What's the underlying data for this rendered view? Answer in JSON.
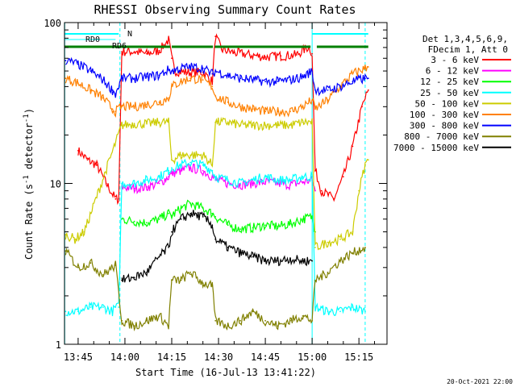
{
  "chart_data": {
    "type": "line",
    "title": "RHESSI Observing Summary Count Rates",
    "xlabel": "Start Time (16-Jul-13 13:41:22)",
    "ylabel": "Count Rate (s",
    "ylabel_sup": "-1",
    "ylabel_tail": " detector",
    "ylabel_sup2": "-1",
    "ylabel_close": ")",
    "yscale": "log",
    "ylim": [
      1,
      100
    ],
    "xlim_minutes": [
      -4.37,
      99
    ],
    "x_ticks": [
      {
        "label": "13:45",
        "min": 0
      },
      {
        "label": "14:00",
        "min": 15
      },
      {
        "label": "14:15",
        "min": 30
      },
      {
        "label": "14:30",
        "min": 45
      },
      {
        "label": "14:45",
        "min": 60
      },
      {
        "label": "15:00",
        "min": 75
      },
      {
        "label": "15:15",
        "min": 90
      }
    ],
    "y_ticks": [
      {
        "label": "1",
        "value": 1
      },
      {
        "label": "10",
        "value": 10
      },
      {
        "label": "100",
        "value": 100
      }
    ],
    "legend_header": [
      "Det 1,3,4,5,6,9,",
      "FDecim 1, Att 0"
    ],
    "legend_placement": "right",
    "series": [
      {
        "name": "3 - 6 keV",
        "color": "#ff0000",
        "points": [
          [
            0,
            16
          ],
          [
            3,
            14
          ],
          [
            6,
            13
          ],
          [
            9,
            10
          ],
          [
            12,
            8
          ],
          [
            13,
            8
          ],
          [
            14,
            66
          ],
          [
            18,
            66
          ],
          [
            22,
            64
          ],
          [
            26,
            67
          ],
          [
            29,
            78
          ],
          [
            30,
            60
          ],
          [
            31,
            50
          ],
          [
            35,
            49
          ],
          [
            40,
            49
          ],
          [
            43,
            43
          ],
          [
            44,
            82
          ],
          [
            46,
            68
          ],
          [
            50,
            65
          ],
          [
            55,
            63
          ],
          [
            60,
            61
          ],
          [
            65,
            62
          ],
          [
            70,
            63
          ],
          [
            74,
            71
          ],
          [
            75,
            64
          ],
          [
            76,
            12
          ],
          [
            78,
            9
          ],
          [
            82,
            8
          ],
          [
            85,
            11
          ],
          [
            88,
            17
          ],
          [
            91,
            30
          ],
          [
            93,
            38
          ]
        ]
      },
      {
        "name": "6 - 12 keV",
        "color": "#ff00ff",
        "points": [
          [
            14,
            9.5
          ],
          [
            18,
            9.3
          ],
          [
            22,
            9.5
          ],
          [
            26,
            10
          ],
          [
            29,
            11
          ],
          [
            30,
            11.5
          ],
          [
            33,
            12
          ],
          [
            36,
            12.5
          ],
          [
            40,
            12
          ],
          [
            43,
            11
          ],
          [
            44,
            10.5
          ],
          [
            48,
            10
          ],
          [
            52,
            9.8
          ],
          [
            56,
            10
          ],
          [
            60,
            10.2
          ],
          [
            64,
            10
          ],
          [
            68,
            9.8
          ],
          [
            72,
            10.2
          ],
          [
            75,
            10.5
          ],
          [
            76,
            9
          ]
        ]
      },
      {
        "name": "12 - 25 keV",
        "color": "#00ff00",
        "points": [
          [
            14,
            6
          ],
          [
            18,
            5.8
          ],
          [
            22,
            5.7
          ],
          [
            26,
            6
          ],
          [
            29,
            6.5
          ],
          [
            30,
            6.3
          ],
          [
            33,
            7
          ],
          [
            36,
            7.5
          ],
          [
            40,
            7
          ],
          [
            43,
            6.5
          ],
          [
            44,
            6.2
          ],
          [
            48,
            5.5
          ],
          [
            52,
            5.2
          ],
          [
            56,
            5.3
          ],
          [
            60,
            5.5
          ],
          [
            64,
            5.4
          ],
          [
            68,
            5.6
          ],
          [
            72,
            6
          ],
          [
            75,
            6.2
          ],
          [
            76,
            5
          ]
        ]
      },
      {
        "name": "25 - 50 keV",
        "color": "#00ffff",
        "points": [
          [
            -4,
            1.6
          ],
          [
            0,
            1.6
          ],
          [
            4,
            1.7
          ],
          [
            8,
            1.7
          ],
          [
            11,
            1.6
          ],
          [
            12,
            1.7
          ],
          [
            13,
            1.7
          ],
          [
            14,
            10
          ],
          [
            18,
            10
          ],
          [
            22,
            10.5
          ],
          [
            26,
            11
          ],
          [
            29,
            12
          ],
          [
            30,
            12.5
          ],
          [
            33,
            13
          ],
          [
            36,
            13.5
          ],
          [
            40,
            13
          ],
          [
            43,
            12
          ],
          [
            44,
            11
          ],
          [
            48,
            10.5
          ],
          [
            52,
            10
          ],
          [
            56,
            10.5
          ],
          [
            60,
            11
          ],
          [
            64,
            10.5
          ],
          [
            68,
            10.5
          ],
          [
            72,
            11
          ],
          [
            75,
            11
          ],
          [
            76,
            1.7
          ],
          [
            80,
            1.6
          ],
          [
            84,
            1.6
          ],
          [
            88,
            1.7
          ],
          [
            92,
            1.6
          ]
        ]
      },
      {
        "name": "50 - 100 keV",
        "color": "#cccc00",
        "points": [
          [
            -4,
            4.8
          ],
          [
            -1,
            4.5
          ],
          [
            2,
            5
          ],
          [
            14,
            23
          ],
          [
            18,
            23.5
          ],
          [
            22,
            23.5
          ],
          [
            26,
            24
          ],
          [
            29,
            24
          ],
          [
            30,
            14
          ],
          [
            33,
            15
          ],
          [
            36,
            15
          ],
          [
            40,
            15
          ],
          [
            43,
            13
          ],
          [
            44,
            24
          ],
          [
            48,
            24
          ],
          [
            52,
            23
          ],
          [
            56,
            23
          ],
          [
            60,
            23
          ],
          [
            64,
            23
          ],
          [
            68,
            23
          ],
          [
            72,
            24
          ],
          [
            75,
            24
          ],
          [
            76,
            4
          ],
          [
            80,
            4.3
          ],
          [
            84,
            4.5
          ],
          [
            88,
            5
          ],
          [
            90,
            9
          ],
          [
            92,
            13
          ],
          [
            93,
            14
          ]
        ]
      },
      {
        "name": "100 - 300 keV",
        "color": "#ff8000",
        "points": [
          [
            -4,
            45
          ],
          [
            0,
            42
          ],
          [
            4,
            38
          ],
          [
            8,
            34
          ],
          [
            11,
            29
          ],
          [
            12,
            28
          ],
          [
            14,
            30
          ],
          [
            18,
            30
          ],
          [
            22,
            31
          ],
          [
            26,
            32
          ],
          [
            29,
            34
          ],
          [
            30,
            40
          ],
          [
            33,
            43
          ],
          [
            36,
            45
          ],
          [
            40,
            44
          ],
          [
            43,
            40
          ],
          [
            44,
            35
          ],
          [
            48,
            32
          ],
          [
            52,
            30
          ],
          [
            56,
            29
          ],
          [
            60,
            28
          ],
          [
            64,
            28
          ],
          [
            68,
            28
          ],
          [
            72,
            30
          ],
          [
            75,
            33
          ],
          [
            76,
            29
          ],
          [
            80,
            33
          ],
          [
            84,
            40
          ],
          [
            88,
            48
          ],
          [
            92,
            52
          ],
          [
            93,
            53
          ]
        ]
      },
      {
        "name": "300 - 800 keV",
        "color": "#0000ff",
        "points": [
          [
            -4,
            58
          ],
          [
            0,
            55
          ],
          [
            4,
            50
          ],
          [
            8,
            44
          ],
          [
            11,
            38
          ],
          [
            12,
            36
          ],
          [
            14,
            45
          ],
          [
            18,
            45
          ],
          [
            22,
            46
          ],
          [
            26,
            47
          ],
          [
            29,
            51
          ],
          [
            30,
            50
          ],
          [
            33,
            52
          ],
          [
            36,
            53
          ],
          [
            40,
            52
          ],
          [
            43,
            48
          ],
          [
            44,
            50
          ],
          [
            48,
            47
          ],
          [
            52,
            45
          ],
          [
            56,
            44
          ],
          [
            60,
            43
          ],
          [
            64,
            43
          ],
          [
            68,
            44
          ],
          [
            72,
            46
          ],
          [
            75,
            50
          ],
          [
            76,
            38
          ],
          [
            80,
            38
          ],
          [
            84,
            40
          ],
          [
            88,
            43
          ],
          [
            92,
            45
          ],
          [
            93,
            45
          ]
        ]
      },
      {
        "name": "800 - 7000 keV",
        "color": "#808000",
        "points": [
          [
            -4,
            3.8
          ],
          [
            0,
            3
          ],
          [
            4,
            3.2
          ],
          [
            8,
            2.7
          ],
          [
            12,
            3.1
          ],
          [
            14,
            1.4
          ],
          [
            18,
            1.3
          ],
          [
            22,
            1.4
          ],
          [
            26,
            1.5
          ],
          [
            29,
            1.3
          ],
          [
            30,
            2.5
          ],
          [
            33,
            2.5
          ],
          [
            36,
            2.8
          ],
          [
            40,
            2.4
          ],
          [
            43,
            2.3
          ],
          [
            44,
            1.4
          ],
          [
            48,
            1.3
          ],
          [
            52,
            1.4
          ],
          [
            56,
            1.6
          ],
          [
            60,
            1.4
          ],
          [
            64,
            1.3
          ],
          [
            68,
            1.4
          ],
          [
            72,
            1.5
          ],
          [
            75,
            1.4
          ],
          [
            76,
            2.5
          ],
          [
            80,
            2.8
          ],
          [
            84,
            3.3
          ],
          [
            88,
            3.7
          ],
          [
            92,
            4
          ]
        ]
      },
      {
        "name": "7000 - 15000 keV",
        "color": "#000000",
        "points": [
          [
            14,
            2.5
          ],
          [
            18,
            2.6
          ],
          [
            22,
            2.8
          ],
          [
            26,
            3.5
          ],
          [
            29,
            4
          ],
          [
            30,
            5
          ],
          [
            33,
            6
          ],
          [
            36,
            6.5
          ],
          [
            40,
            6.2
          ],
          [
            43,
            5.5
          ],
          [
            44,
            4.5
          ],
          [
            48,
            4
          ],
          [
            52,
            3.7
          ],
          [
            56,
            3.5
          ],
          [
            60,
            3.3
          ],
          [
            64,
            3.3
          ],
          [
            68,
            3.4
          ],
          [
            72,
            3.3
          ],
          [
            75,
            3.3
          ]
        ]
      }
    ],
    "annotations": {
      "night_label": "N",
      "rd0_label": "RD0",
      "rd6_label": "RD6",
      "night_intervals": [
        [
          -4.3,
          13
        ],
        [
          75,
          93
        ]
      ],
      "rd0_interval": [
        -4.3,
        12
      ],
      "green_bars": [
        [
          -4.3,
          29.5
        ],
        [
          30,
          43.2
        ],
        [
          43.8,
          74.5
        ],
        [
          76.5,
          93
        ]
      ],
      "dashed_cyan_minutes": [
        13.4,
        92
      ],
      "solid_cyan_minutes": [
        -4.3,
        75
      ]
    },
    "grid": false
  },
  "footer": {
    "date_stamp": "20-Oct-2021 22:00"
  }
}
